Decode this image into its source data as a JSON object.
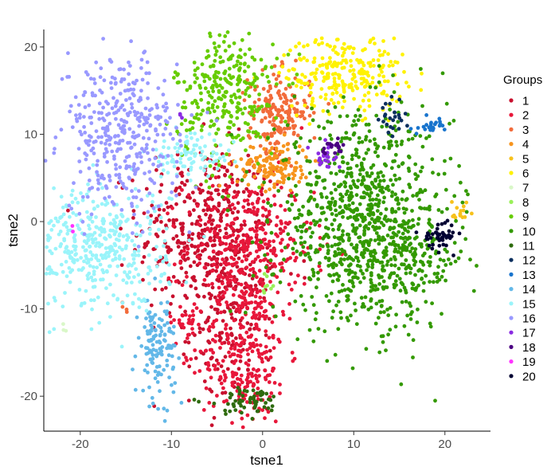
{
  "chart_data": {
    "type": "scatter",
    "xlabel": "tsne1",
    "ylabel": "tsne2",
    "xlim": [
      -24,
      25
    ],
    "ylim": [
      -24,
      22
    ],
    "grid": false,
    "legend_position": "right",
    "x_ticks": [
      -20,
      -10,
      0,
      10,
      20
    ],
    "y_ticks": [
      -20,
      -10,
      0,
      10,
      20
    ],
    "x_tick_labels": [
      "-20",
      "-10",
      "0",
      "10",
      "20"
    ],
    "y_tick_labels": [
      "-20",
      "-10",
      "0",
      "10",
      "20"
    ],
    "legend_title": "Groups",
    "series": [
      {
        "name": "1",
        "color": "#C8102E",
        "clusters": [
          {
            "cx": -6,
            "cy": -1,
            "sx": 3.8,
            "sy": 4.8,
            "n": 420
          },
          {
            "cx": -3.5,
            "cy": -12,
            "sx": 2.2,
            "sy": 4.5,
            "n": 160
          }
        ]
      },
      {
        "name": "2",
        "color": "#E8173A",
        "clusters": [
          {
            "cx": -1.5,
            "cy": -3,
            "sx": 3.5,
            "sy": 4.0,
            "n": 340
          },
          {
            "cx": -2,
            "cy": -15,
            "sx": 2.4,
            "sy": 4.2,
            "n": 260
          },
          {
            "cx": -8.5,
            "cy": -11.5,
            "sx": 0.9,
            "sy": 0.8,
            "n": 25
          }
        ]
      },
      {
        "name": "3",
        "color": "#F26B3A",
        "clusters": [
          {
            "cx": 1.8,
            "cy": 12.5,
            "sx": 1.7,
            "sy": 2.3,
            "n": 180
          },
          {
            "cx": -15,
            "cy": -10,
            "sx": 0.3,
            "sy": 0.4,
            "n": 4
          }
        ]
      },
      {
        "name": "4",
        "color": "#F7941D",
        "clusters": [
          {
            "cx": 1.2,
            "cy": 6.5,
            "sx": 2.0,
            "sy": 1.3,
            "n": 140
          }
        ]
      },
      {
        "name": "5",
        "color": "#F7C11B",
        "clusters": [
          {
            "cx": 21.5,
            "cy": 1,
            "sx": 0.5,
            "sy": 0.9,
            "n": 15
          }
        ]
      },
      {
        "name": "6",
        "color": "#FFF200",
        "clusters": [
          {
            "cx": 9,
            "cy": 17,
            "sx": 3.3,
            "sy": 2.2,
            "n": 260
          }
        ]
      },
      {
        "name": "7",
        "color": "#D9F7C8",
        "clusters": [
          {
            "cx": -22,
            "cy": -12,
            "sx": 0.3,
            "sy": 0.3,
            "n": 3
          }
        ]
      },
      {
        "name": "8",
        "color": "#9AF05A",
        "clusters": [
          {
            "cx": 0.5,
            "cy": -7,
            "sx": 0.3,
            "sy": 0.6,
            "n": 8
          }
        ]
      },
      {
        "name": "9",
        "color": "#66CC00",
        "clusters": [
          {
            "cx": -4,
            "cy": 14.5,
            "sx": 2.8,
            "sy": 4.0,
            "n": 300
          }
        ]
      },
      {
        "name": "10",
        "color": "#339900",
        "clusters": [
          {
            "cx": 11,
            "cy": 0,
            "sx": 4.8,
            "sy": 6.0,
            "n": 900
          },
          {
            "cx": 16,
            "cy": -5,
            "sx": 2.6,
            "sy": 2.5,
            "n": 120
          }
        ]
      },
      {
        "name": "11",
        "color": "#2E6B0E",
        "clusters": [
          {
            "cx": -2,
            "cy": -20.5,
            "sx": 2.2,
            "sy": 0.8,
            "n": 60
          }
        ]
      },
      {
        "name": "12",
        "color": "#0B2F5E",
        "clusters": [
          {
            "cx": 14.3,
            "cy": 11.5,
            "sx": 0.6,
            "sy": 1.0,
            "n": 25
          }
        ]
      },
      {
        "name": "13",
        "color": "#1874CD",
        "clusters": [
          {
            "cx": 18.6,
            "cy": 11,
            "sx": 0.7,
            "sy": 0.4,
            "n": 25
          }
        ]
      },
      {
        "name": "14",
        "color": "#63B8E8",
        "clusters": [
          {
            "cx": -11.5,
            "cy": -14.5,
            "sx": 1.0,
            "sy": 3.0,
            "n": 130
          }
        ]
      },
      {
        "name": "15",
        "color": "#9AF4FA",
        "clusters": [
          {
            "cx": -18,
            "cy": -3,
            "sx": 3.8,
            "sy": 3.5,
            "n": 400
          },
          {
            "cx": -8,
            "cy": 7.5,
            "sx": 2.4,
            "sy": 1.2,
            "n": 90
          }
        ]
      },
      {
        "name": "16",
        "color": "#9999FF",
        "clusters": [
          {
            "cx": -15.5,
            "cy": 10,
            "sx": 3.2,
            "sy": 4.5,
            "n": 380
          }
        ]
      },
      {
        "name": "17",
        "color": "#8A2BE2",
        "clusters": [
          {
            "cx": 7,
            "cy": 7.5,
            "sx": 0.8,
            "sy": 0.6,
            "n": 25
          },
          {
            "cx": -9,
            "cy": 12,
            "sx": 0.2,
            "sy": 0.2,
            "n": 3
          }
        ]
      },
      {
        "name": "18",
        "color": "#4B0082",
        "clusters": [
          {
            "cx": 7.8,
            "cy": 8.5,
            "sx": 0.6,
            "sy": 0.4,
            "n": 20
          }
        ]
      },
      {
        "name": "19",
        "color": "#FF33FF",
        "clusters": [
          {
            "cx": -21,
            "cy": -1,
            "sx": 0.2,
            "sy": 0.2,
            "n": 2
          }
        ]
      },
      {
        "name": "20",
        "color": "#000033",
        "clusters": [
          {
            "cx": 19.5,
            "cy": -1.5,
            "sx": 0.9,
            "sy": 0.8,
            "n": 45
          }
        ]
      }
    ]
  }
}
